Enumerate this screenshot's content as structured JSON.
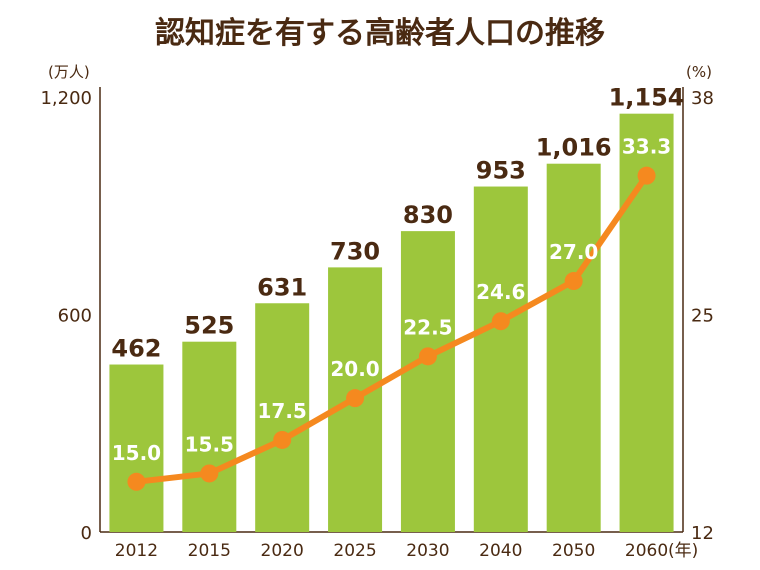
{
  "chart_data": {
    "type": "bar+line",
    "title": "認知症を有する高齢者人口の推移",
    "categories": [
      "2012",
      "2015",
      "2020",
      "2025",
      "2030",
      "2040",
      "2050",
      "2060"
    ],
    "x_unit": "(年)",
    "series": [
      {
        "type": "bar",
        "axis": "left",
        "values": [
          462,
          525,
          631,
          730,
          830,
          953,
          1016,
          1154
        ],
        "labels": [
          "462",
          "525",
          "631",
          "730",
          "830",
          "953",
          "1,016",
          "1,154"
        ],
        "color": "#9dc63c"
      },
      {
        "type": "line",
        "axis": "right",
        "values": [
          15.0,
          15.5,
          17.5,
          20.0,
          22.5,
          24.6,
          27.0,
          33.3
        ],
        "labels": [
          "15.0",
          "15.5",
          "17.5",
          "20.0",
          "22.5",
          "24.6",
          "27.0",
          "33.3"
        ],
        "color": "#f5891f"
      }
    ],
    "left_axis": {
      "unit": "(万人)",
      "ylim": [
        0,
        1200
      ],
      "ticks": [
        0,
        600,
        1200
      ],
      "tick_labels": [
        "0",
        "600",
        "1,200"
      ]
    },
    "right_axis": {
      "unit": "(%)",
      "ylim": [
        12,
        38
      ],
      "ticks": [
        12,
        25,
        38
      ],
      "tick_labels": [
        "12",
        "25",
        "38"
      ]
    },
    "grid": false,
    "legend": "none"
  }
}
